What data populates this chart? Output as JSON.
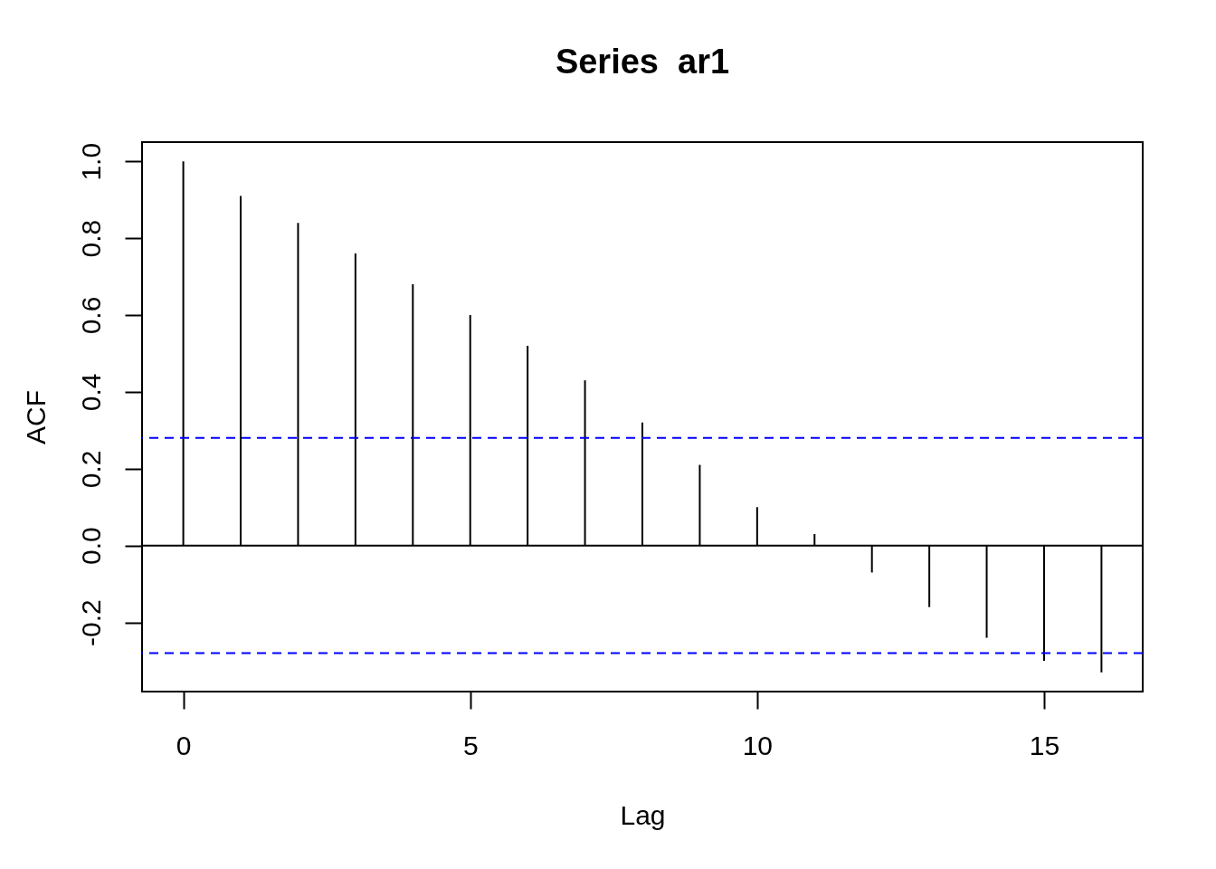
{
  "chart_data": {
    "type": "bar",
    "title": "Series  ar1",
    "xlabel": "Lag",
    "ylabel": "ACF",
    "x": [
      0,
      1,
      2,
      3,
      4,
      5,
      6,
      7,
      8,
      9,
      10,
      11,
      12,
      13,
      14,
      15,
      16
    ],
    "values": [
      1.0,
      0.91,
      0.84,
      0.76,
      0.68,
      0.6,
      0.52,
      0.43,
      0.32,
      0.21,
      0.1,
      0.03,
      -0.07,
      -0.16,
      -0.24,
      -0.3,
      -0.33
    ],
    "color": "#000000",
    "xlim": [
      -0.64,
      16.64
    ],
    "ylim": [
      -0.38,
      1.05
    ],
    "xticks": [
      0,
      5,
      10,
      15
    ],
    "yticks": [
      -0.2,
      {
        "value": 0,
        "label": "0.0"
      },
      0.2,
      0.4,
      0.6,
      0.8,
      {
        "value": 1,
        "label": "1.0"
      }
    ],
    "ref_lines": [
      {
        "axis": "y",
        "value": 0,
        "color": "#000000",
        "line_style": "solid"
      },
      {
        "axis": "y",
        "value": 0.28,
        "color": "#0000ff",
        "line_style": "dashed"
      },
      {
        "axis": "y",
        "value": -0.28,
        "color": "#0000ff",
        "line_style": "dashed"
      }
    ]
  }
}
